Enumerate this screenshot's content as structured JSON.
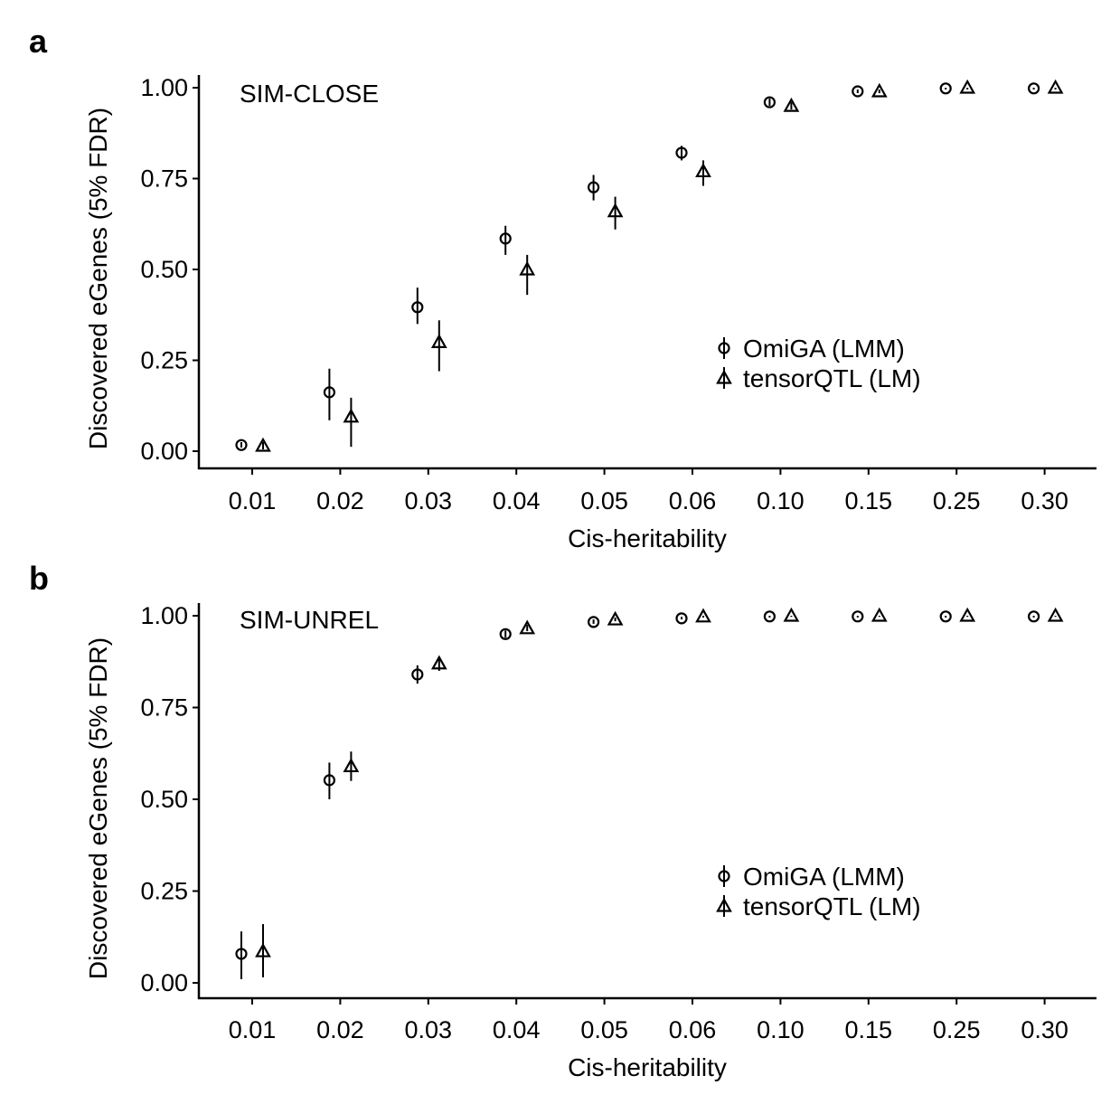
{
  "chart_data": [
    {
      "type": "scatter",
      "panel_label": "a",
      "title": "SIM-CLOSE",
      "xlabel": "Cis-heritability",
      "ylabel": "Discovered eGenes (5% FDR)",
      "categories": [
        "0.01",
        "0.02",
        "0.03",
        "0.04",
        "0.05",
        "0.06",
        "0.10",
        "0.15",
        "0.25",
        "0.30"
      ],
      "yticks": [
        "0.00",
        "0.25",
        "0.50",
        "0.75",
        "1.00"
      ],
      "ylim": [
        0,
        1
      ],
      "legend_position": "right-middle",
      "series": [
        {
          "name": "OmiGA (LMM)",
          "marker": "circle",
          "values": [
            0.017,
            0.162,
            0.396,
            0.585,
            0.726,
            0.821,
            0.96,
            0.99,
            0.998,
            0.998
          ],
          "lower": [
            0.01,
            0.085,
            0.35,
            0.54,
            0.69,
            0.8,
            0.95,
            0.985,
            0.995,
            0.995
          ],
          "upper": [
            0.025,
            0.227,
            0.45,
            0.62,
            0.76,
            0.84,
            0.97,
            0.995,
            1.0,
            1.0
          ]
        },
        {
          "name": "tensorQTL (LM)",
          "marker": "triangle",
          "values": [
            0.015,
            0.095,
            0.3,
            0.5,
            0.66,
            0.77,
            0.95,
            0.99,
            1.0,
            1.0
          ],
          "lower": [
            0.005,
            0.012,
            0.22,
            0.43,
            0.61,
            0.73,
            0.94,
            0.985,
            0.995,
            0.995
          ],
          "upper": [
            0.025,
            0.147,
            0.36,
            0.54,
            0.7,
            0.8,
            0.96,
            0.995,
            1.0,
            1.0
          ]
        }
      ]
    },
    {
      "type": "scatter",
      "panel_label": "b",
      "title": "SIM-UNREL",
      "xlabel": "Cis-heritability",
      "ylabel": "Discovered eGenes (5% FDR)",
      "categories": [
        "0.01",
        "0.02",
        "0.03",
        "0.04",
        "0.05",
        "0.06",
        "0.10",
        "0.15",
        "0.25",
        "0.30"
      ],
      "yticks": [
        "0.00",
        "0.25",
        "0.50",
        "0.75",
        "1.00"
      ],
      "ylim": [
        0,
        1
      ],
      "legend_position": "right-middle",
      "series": [
        {
          "name": "OmiGA (LMM)",
          "marker": "circle",
          "values": [
            0.079,
            0.552,
            0.84,
            0.95,
            0.983,
            0.993,
            0.998,
            0.998,
            0.998,
            0.998
          ],
          "lower": [
            0.01,
            0.5,
            0.815,
            0.94,
            0.978,
            0.99,
            0.995,
            0.995,
            0.995,
            0.995
          ],
          "upper": [
            0.14,
            0.6,
            0.865,
            0.96,
            0.99,
            0.997,
            1.0,
            1.0,
            1.0,
            1.0
          ]
        },
        {
          "name": "tensorQTL (LM)",
          "marker": "triangle",
          "values": [
            0.086,
            0.59,
            0.87,
            0.966,
            0.99,
            0.998,
            1.0,
            1.0,
            1.0,
            1.0
          ],
          "lower": [
            0.015,
            0.55,
            0.85,
            0.958,
            0.985,
            0.995,
            0.997,
            0.997,
            0.997,
            0.997
          ],
          "upper": [
            0.16,
            0.63,
            0.888,
            0.975,
            0.995,
            1.0,
            1.0,
            1.0,
            1.0,
            1.0
          ]
        }
      ]
    }
  ]
}
